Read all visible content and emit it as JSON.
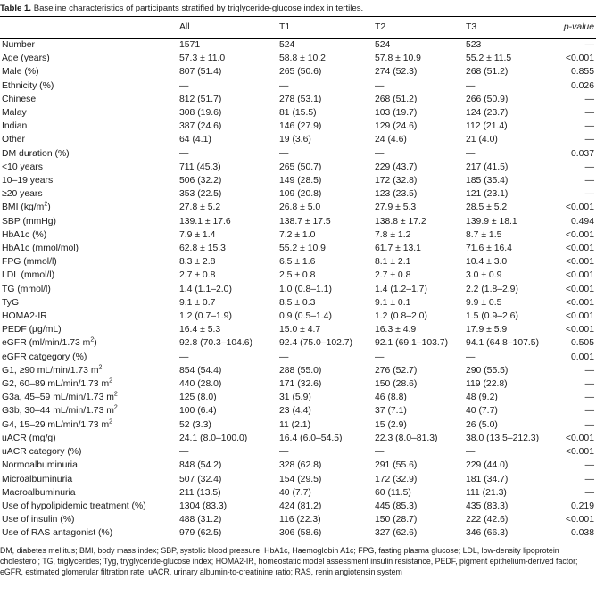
{
  "caption": {
    "label": "Table 1.",
    "text": "Baseline characteristics of participants stratified by triglyceride-glucose index in tertiles."
  },
  "headers": [
    "",
    "All",
    "T1",
    "T2",
    "T3",
    "p-value"
  ],
  "rows": [
    {
      "label": "Number",
      "all": "1571",
      "t1": "524",
      "t2": "524",
      "t3": "523",
      "p": "—"
    },
    {
      "label": "Age (years)",
      "all": "57.3 ± 11.0",
      "t1": "58.8 ± 10.2",
      "t2": "57.8 ± 10.9",
      "t3": "55.2 ± 11.5",
      "p": "<0.001"
    },
    {
      "label": "Male (%)",
      "all": "807 (51.4)",
      "t1": "265 (50.6)",
      "t2": "274 (52.3)",
      "t3": "268 (51.2)",
      "p": "0.855"
    },
    {
      "label": "Ethnicity (%)",
      "all": "—",
      "t1": "—",
      "t2": "—",
      "t3": "—",
      "p": "0.026"
    },
    {
      "label": "Chinese",
      "all": "812 (51.7)",
      "t1": "278 (53.1)",
      "t2": "268 (51.2)",
      "t3": "266 (50.9)",
      "p": "—"
    },
    {
      "label": "Malay",
      "all": "308 (19.6)",
      "t1": "81 (15.5)",
      "t2": "103 (19.7)",
      "t3": "124 (23.7)",
      "p": "—"
    },
    {
      "label": "Indian",
      "all": "387 (24.6)",
      "t1": "146 (27.9)",
      "t2": "129 (24.6)",
      "t3": "112 (21.4)",
      "p": "—"
    },
    {
      "label": "Other",
      "all": "64 (4.1)",
      "t1": "19 (3.6)",
      "t2": "24 (4.6)",
      "t3": "21 (4.0)",
      "p": "—"
    },
    {
      "label": "DM duration (%)",
      "all": "—",
      "t1": "—",
      "t2": "—",
      "t3": "—",
      "p": "0.037"
    },
    {
      "label": "<10 years",
      "all": "711 (45.3)",
      "t1": "265 (50.7)",
      "t2": "229 (43.7)",
      "t3": "217 (41.5)",
      "p": "—"
    },
    {
      "label": "10–19 years",
      "all": "506 (32.2)",
      "t1": "149 (28.5)",
      "t2": "172 (32.8)",
      "t3": "185 (35.4)",
      "p": "—"
    },
    {
      "label": "≥20 years",
      "all": "353 (22.5)",
      "t1": "109 (20.8)",
      "t2": "123 (23.5)",
      "t3": "121 (23.1)",
      "p": "—"
    },
    {
      "label": "BMI (kg/m",
      "sup": "2",
      "label_after": ")",
      "all": "27.8 ± 5.2",
      "t1": "26.8 ± 5.0",
      "t2": "27.9 ± 5.3",
      "t3": "28.5 ± 5.2",
      "p": "<0.001"
    },
    {
      "label": "SBP (mmHg)",
      "all": "139.1 ± 17.6",
      "t1": "138.7 ± 17.5",
      "t2": "138.8 ± 17.2",
      "t3": "139.9 ± 18.1",
      "p": "0.494"
    },
    {
      "label": "HbA1c (%)",
      "all": "7.9 ± 1.4",
      "t1": "7.2 ± 1.0",
      "t2": "7.8 ± 1.2",
      "t3": "8.7 ± 1.5",
      "p": "<0.001"
    },
    {
      "label": "HbA1c (mmol/mol)",
      "all": "62.8 ± 15.3",
      "t1": "55.2 ± 10.9",
      "t2": "61.7 ± 13.1",
      "t3": "71.6 ± 16.4",
      "p": "<0.001"
    },
    {
      "label": "FPG (mmol/l)",
      "all": "8.3 ± 2.8",
      "t1": "6.5 ± 1.6",
      "t2": "8.1 ± 2.1",
      "t3": "10.4 ± 3.0",
      "p": "<0.001"
    },
    {
      "label": "LDL (mmol/l)",
      "all": "2.7 ± 0.8",
      "t1": "2.5 ± 0.8",
      "t2": "2.7 ± 0.8",
      "t3": "3.0 ± 0.9",
      "p": "<0.001"
    },
    {
      "label": "TG (mmol/l)",
      "all": "1.4 (1.1–2.0)",
      "t1": "1.0 (0.8–1.1)",
      "t2": "1.4 (1.2–1.7)",
      "t3": "2.2 (1.8–2.9)",
      "p": "<0.001"
    },
    {
      "label": "TyG",
      "all": "9.1 ± 0.7",
      "t1": "8.5 ± 0.3",
      "t2": "9.1 ± 0.1",
      "t3": "9.9 ± 0.5",
      "p": "<0.001"
    },
    {
      "label": "HOMA2-IR",
      "all": "1.2 (0.7–1.9)",
      "t1": "0.9 (0.5–1.4)",
      "t2": "1.2 (0.8–2.0)",
      "t3": "1.5 (0.9–2.6)",
      "p": "<0.001"
    },
    {
      "label": "PEDF (µg/mL)",
      "all": "16.4 ± 5.3",
      "t1": "15.0 ± 4.7",
      "t2": "16.3 ± 4.9",
      "t3": "17.9 ± 5.9",
      "p": "<0.001"
    },
    {
      "label": "eGFR (ml/min/1.73 m",
      "sup": "2",
      "label_after": ")",
      "all": "92.8 (70.3–104.6)",
      "t1": "92.4 (75.0–102.7)",
      "t2": "92.1 (69.1–103.7)",
      "t3": "94.1 (64.8–107.5)",
      "p": "0.505"
    },
    {
      "label": "eGFR catgegory (%)",
      "all": "—",
      "t1": "—",
      "t2": "—",
      "t3": "—",
      "p": "0.001"
    },
    {
      "label": "G1, ≥90 mL/min/1.73 m",
      "sup": "2",
      "all": "854 (54.4)",
      "t1": "288 (55.0)",
      "t2": "276 (52.7)",
      "t3": "290 (55.5)",
      "p": "—"
    },
    {
      "label": "G2, 60–89 mL/min/1.73 m",
      "sup": "2",
      "all": "440 (28.0)",
      "t1": "171 (32.6)",
      "t2": "150 (28.6)",
      "t3": "119 (22.8)",
      "p": "—"
    },
    {
      "label": "G3a, 45–59 mL/min/1.73 m",
      "sup": "2",
      "all": "125 (8.0)",
      "t1": "31 (5.9)",
      "t2": "46 (8.8)",
      "t3": "48 (9.2)",
      "p": "—"
    },
    {
      "label": "G3b, 30–44 mL/min/1.73 m",
      "sup": "2",
      "all": "100 (6.4)",
      "t1": "23 (4.4)",
      "t2": "37 (7.1)",
      "t3": "40 (7.7)",
      "p": "—"
    },
    {
      "label": "G4, 15–29 mL/min/1.73 m",
      "sup": "2",
      "all": "52 (3.3)",
      "t1": "11 (2.1)",
      "t2": "15 (2.9)",
      "t3": "26 (5.0)",
      "p": "—"
    },
    {
      "label": "uACR (mg/g)",
      "all": "24.1 (8.0–100.0)",
      "t1": "16.4 (6.0–54.5)",
      "t2": "22.3 (8.0–81.3)",
      "t3": "38.0 (13.5–212.3)",
      "p": "<0.001"
    },
    {
      "label": "uACR category (%)",
      "all": "—",
      "t1": "—",
      "t2": "—",
      "t3": "—",
      "p": "<0.001"
    },
    {
      "label": "Normoalbuminuria",
      "all": "848 (54.2)",
      "t1": "328 (62.8)",
      "t2": "291 (55.6)",
      "t3": "229 (44.0)",
      "p": "—"
    },
    {
      "label": "Microalbuminuria",
      "all": "507 (32.4)",
      "t1": "154 (29.5)",
      "t2": "172 (32.9)",
      "t3": "181 (34.7)",
      "p": "—"
    },
    {
      "label": "Macroalbuminuria",
      "all": "211 (13.5)",
      "t1": "40 (7.7)",
      "t2": "60 (11.5)",
      "t3": "111 (21.3)",
      "p": "—"
    },
    {
      "label": "Use of hypolipidemic treatment (%)",
      "all": "1304 (83.3)",
      "t1": "424 (81.2)",
      "t2": "445 (85.3)",
      "t3": "435 (83.3)",
      "p": "0.219"
    },
    {
      "label": "Use of insulin (%)",
      "all": "488 (31.2)",
      "t1": "116 (22.3)",
      "t2": "150 (28.7)",
      "t3": "222 (42.6)",
      "p": "<0.001"
    },
    {
      "label": "Use of RAS antagonist (%)",
      "all": "979 (62.5)",
      "t1": "306 (58.6)",
      "t2": "327 (62.6)",
      "t3": "346 (66.3)",
      "p": "0.038"
    }
  ],
  "footnote": "DM, diabetes mellitus; BMI, body mass index; SBP, systolic blood pressure; HbA1c, Haemoglobin A1c; FPG, fasting plasma glucose; LDL, low-density lipoprotein cholesterol; TG, triglycerides; Tyg, tryglyceride-glucose index; HOMA2-IR, homeostatic model assessment insulin resistance, PEDF, pigment epithelium-derived factor; eGFR, estimated glomerular filtration rate; uACR, urinary albumin-to-creatinine ratio; RAS, renin angiotensin system"
}
